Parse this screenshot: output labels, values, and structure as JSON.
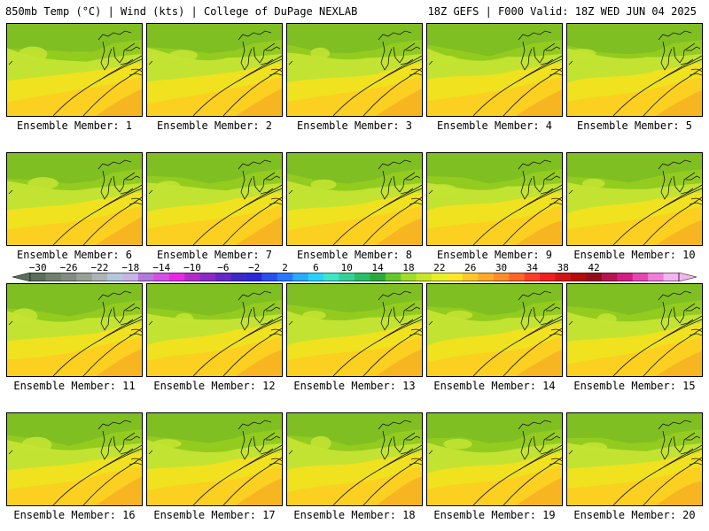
{
  "header": {
    "left": "850mb Temp (°C) | Wind (kts) | College of DuPage NEXLAB",
    "right": "18Z GEFS | F000 Valid: 18Z WED JUN 04 2025"
  },
  "panels": [
    {
      "label": "Ensemble Member: 1"
    },
    {
      "label": "Ensemble Member: 2"
    },
    {
      "label": "Ensemble Member: 3"
    },
    {
      "label": "Ensemble Member: 4"
    },
    {
      "label": "Ensemble Member: 5"
    },
    {
      "label": "Ensemble Member: 6"
    },
    {
      "label": "Ensemble Member: 7"
    },
    {
      "label": "Ensemble Member: 8"
    },
    {
      "label": "Ensemble Member: 9"
    },
    {
      "label": "Ensemble Member: 10"
    },
    {
      "label": "Ensemble Member: 11"
    },
    {
      "label": "Ensemble Member: 12"
    },
    {
      "label": "Ensemble Member: 13"
    },
    {
      "label": "Ensemble Member: 14"
    },
    {
      "label": "Ensemble Member: 15"
    },
    {
      "label": "Ensemble Member: 16"
    },
    {
      "label": "Ensemble Member: 17"
    },
    {
      "label": "Ensemble Member: 18"
    },
    {
      "label": "Ensemble Member: 19"
    },
    {
      "label": "Ensemble Member: 20"
    }
  ],
  "colorbar": {
    "tick_labels": [
      "−30",
      "−26",
      "−22",
      "−18",
      "−14",
      "−10",
      "−6",
      "−2",
      "2",
      "6",
      "10",
      "14",
      "18",
      "22",
      "26",
      "30",
      "34",
      "38",
      "42"
    ],
    "colors": [
      "#5a6e5a",
      "#6e806e",
      "#828c82",
      "#96a096",
      "#aab4b4",
      "#b4c8dc",
      "#c8b4e6",
      "#b478dc",
      "#d250e6",
      "#e628e6",
      "#b428c8",
      "#8c28c8",
      "#6428c8",
      "#3c28c8",
      "#2828dc",
      "#2850f0",
      "#2878ff",
      "#28aaff",
      "#28d2ff",
      "#3ce6c8",
      "#32d296",
      "#28be64",
      "#28aa3c",
      "#64c828",
      "#a0dc28",
      "#c8e628",
      "#e6f028",
      "#ffe628",
      "#ffc828",
      "#ffaa28",
      "#ff8c28",
      "#ff6428",
      "#ff3c28",
      "#f01e1e",
      "#d21414",
      "#b40a0a",
      "#960a1e",
      "#b41450",
      "#d21e82",
      "#e646b4",
      "#f07ddc",
      "#f5b4f0"
    ],
    "map_palette": {
      "green_dark": "#7fbf22",
      "green": "#93cc1e",
      "yellow_green": "#c3e332",
      "yellow": "#f0e21e",
      "gold": "#fbd020",
      "orange": "#f7b522"
    }
  }
}
